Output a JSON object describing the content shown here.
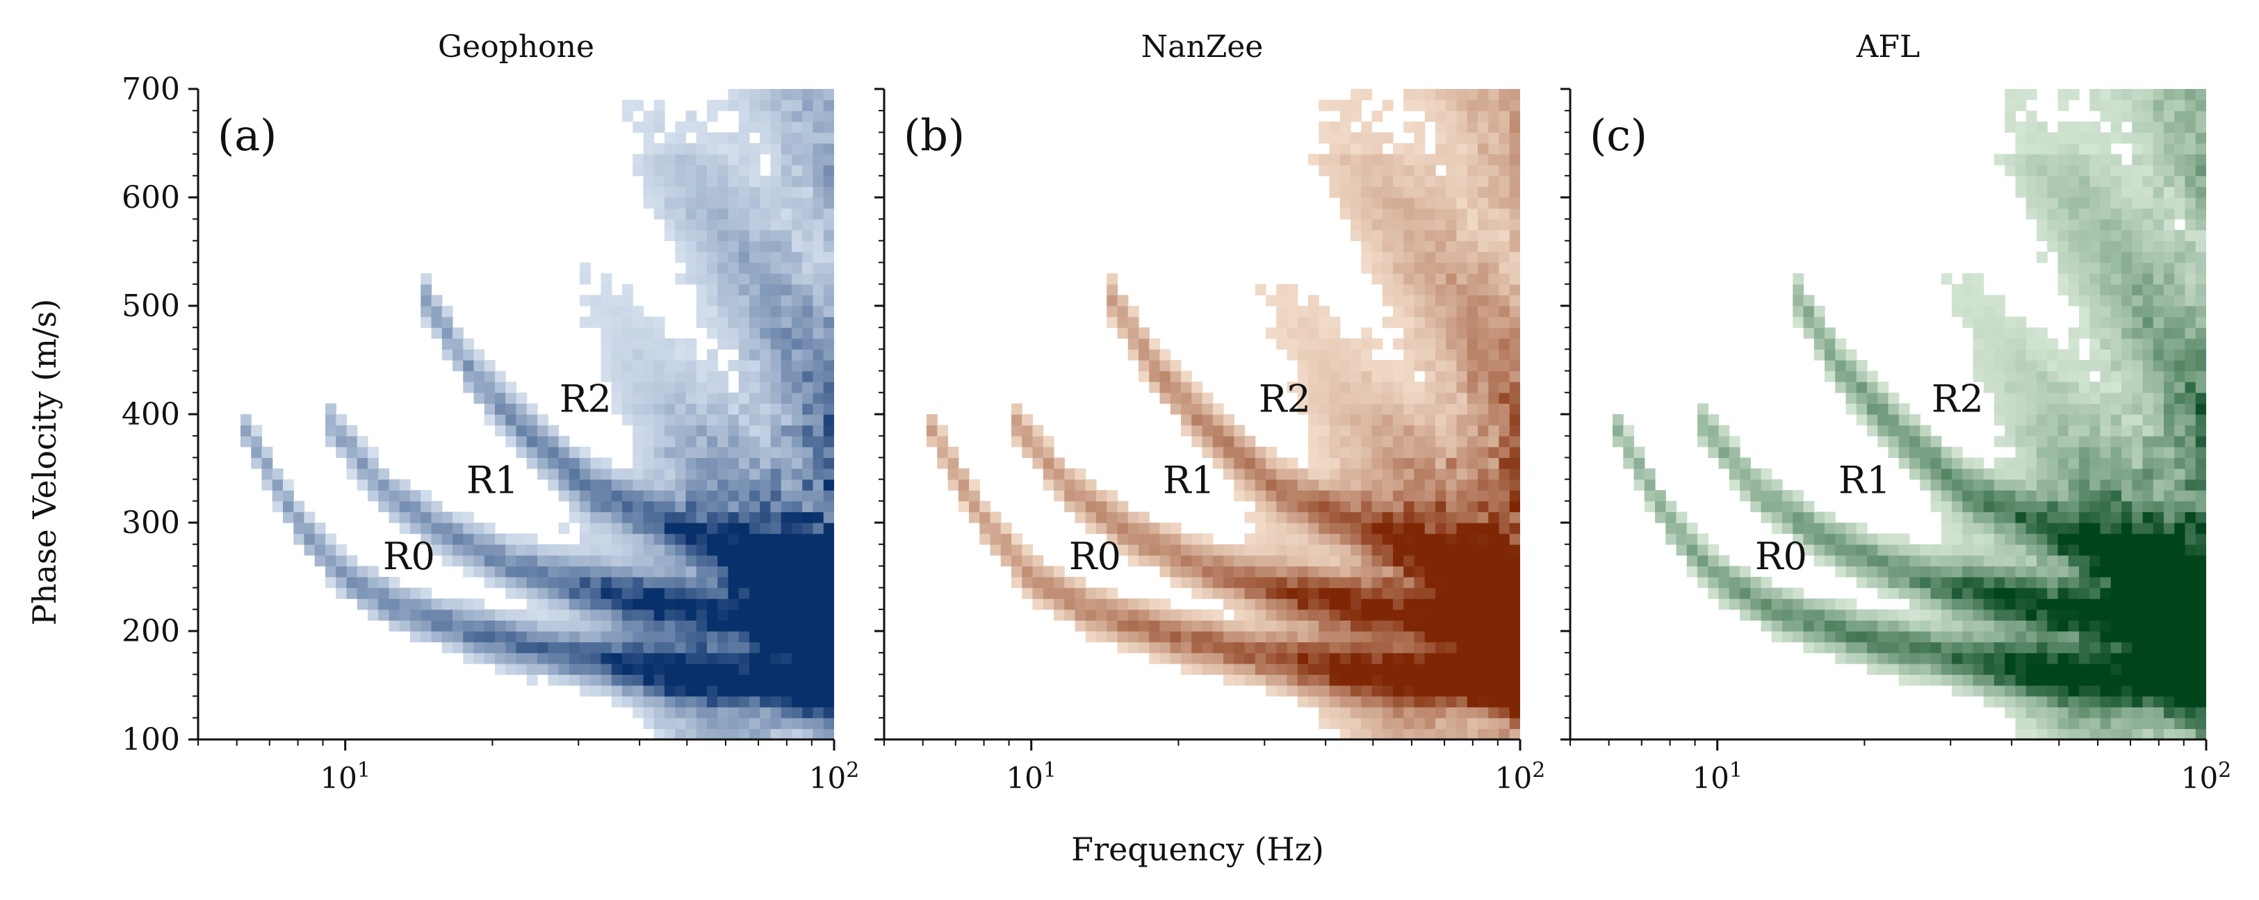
{
  "figure": {
    "xlabel": "Frequency (Hz)",
    "ylabel": "Phase Velocity (m/s)"
  },
  "chart_data": [
    {
      "type": "heatmap",
      "panel_label": "(a)",
      "title": "Geophone",
      "colormap": "Blues",
      "color_light": "#eaf2fb",
      "color_dark": "#08306b",
      "xscale": "log",
      "xlim": [
        5,
        100
      ],
      "ylim": [
        100,
        700
      ],
      "xticks": [
        10,
        100
      ],
      "xtick_labels": [
        "10^1",
        "10^2"
      ],
      "yticks": [
        100,
        200,
        300,
        400,
        500,
        600,
        700
      ],
      "show_ytick_labels": true,
      "mode_labels": [
        {
          "text": "R0",
          "f": 13.5,
          "v": 270
        },
        {
          "text": "R1",
          "f": 20,
          "v": 340
        },
        {
          "text": "R2",
          "f": 31,
          "v": 415
        }
      ],
      "modes": [
        {
          "name": "R0",
          "f": [
            6,
            8,
            10,
            13,
            18,
            25,
            35,
            50,
            70,
            100
          ],
          "v": [
            400,
            300,
            250,
            220,
            200,
            185,
            170,
            160,
            155,
            150
          ]
        },
        {
          "name": "R1",
          "f": [
            9,
            12,
            16,
            22,
            30,
            45,
            70,
            100
          ],
          "v": [
            400,
            330,
            290,
            260,
            240,
            225,
            210,
            200
          ]
        },
        {
          "name": "R2",
          "f": [
            14,
            18,
            24,
            32,
            45,
            65,
            100
          ],
          "v": [
            520,
            440,
            380,
            330,
            300,
            270,
            250
          ]
        }
      ]
    },
    {
      "type": "heatmap",
      "panel_label": "(b)",
      "title": "NanZee",
      "colormap": "Oranges",
      "color_light": "#fdeedd",
      "color_dark": "#7f2704",
      "xscale": "log",
      "xlim": [
        5,
        100
      ],
      "ylim": [
        100,
        700
      ],
      "xticks": [
        10,
        100
      ],
      "xtick_labels": [
        "10^1",
        "10^2"
      ],
      "yticks": [
        100,
        200,
        300,
        400,
        500,
        600,
        700
      ],
      "show_ytick_labels": false,
      "mode_labels": [
        {
          "text": "R0",
          "f": 13.5,
          "v": 270
        },
        {
          "text": "R1",
          "f": 21,
          "v": 340
        },
        {
          "text": "R2",
          "f": 33,
          "v": 415
        }
      ],
      "modes": [
        {
          "name": "R0",
          "f": [
            6,
            8,
            10,
            13,
            18,
            25,
            35,
            50,
            70,
            100
          ],
          "v": [
            400,
            300,
            250,
            220,
            200,
            185,
            170,
            160,
            155,
            150
          ]
        },
        {
          "name": "R1",
          "f": [
            9,
            12,
            16,
            22,
            30,
            45,
            70,
            100
          ],
          "v": [
            400,
            330,
            290,
            260,
            240,
            225,
            210,
            200
          ]
        },
        {
          "name": "R2",
          "f": [
            14,
            18,
            24,
            32,
            45,
            65,
            100
          ],
          "v": [
            520,
            440,
            380,
            330,
            300,
            270,
            250
          ]
        }
      ]
    },
    {
      "type": "heatmap",
      "panel_label": "(c)",
      "title": "AFL",
      "colormap": "Greens",
      "color_light": "#e9f6e6",
      "color_dark": "#00441b",
      "xscale": "log",
      "xlim": [
        5,
        100
      ],
      "ylim": [
        100,
        700
      ],
      "xticks": [
        10,
        100
      ],
      "xtick_labels": [
        "10^1",
        "10^2"
      ],
      "yticks": [
        100,
        200,
        300,
        400,
        500,
        600,
        700
      ],
      "show_ytick_labels": false,
      "mode_labels": [
        {
          "text": "R0",
          "f": 13.5,
          "v": 270
        },
        {
          "text": "R1",
          "f": 20,
          "v": 340
        },
        {
          "text": "R2",
          "f": 31,
          "v": 415
        }
      ],
      "modes": [
        {
          "name": "R0",
          "f": [
            6,
            8,
            10,
            13,
            18,
            25,
            35,
            50,
            70,
            100
          ],
          "v": [
            400,
            300,
            250,
            220,
            200,
            185,
            170,
            160,
            155,
            150
          ]
        },
        {
          "name": "R1",
          "f": [
            9,
            12,
            16,
            22,
            30,
            45,
            70,
            100
          ],
          "v": [
            400,
            330,
            290,
            260,
            240,
            225,
            210,
            200
          ]
        },
        {
          "name": "R2",
          "f": [
            14,
            18,
            24,
            32,
            45,
            65,
            100
          ],
          "v": [
            520,
            440,
            380,
            330,
            300,
            270,
            250
          ]
        }
      ]
    }
  ]
}
